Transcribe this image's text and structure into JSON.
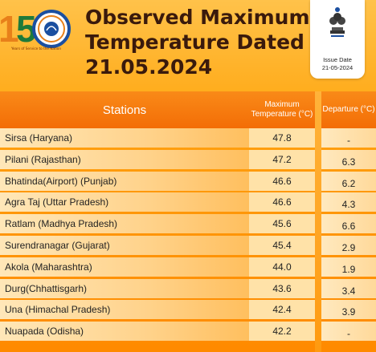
{
  "logo": {
    "number": "150",
    "tagline": "Years of Service to the Nation"
  },
  "title": {
    "line1": "Observed Maximum",
    "line2": "Temperature Dated",
    "line3": "21.05.2024"
  },
  "issue": {
    "label": "Issue Date",
    "date": "21-05-2024"
  },
  "table": {
    "headers": {
      "stations": "Stations",
      "temp": "Maximum Temperature (°C)",
      "departure": "Departure (°C)"
    },
    "rows": [
      {
        "station": "Sirsa (Haryana)",
        "temp": "47.8",
        "departure": "-"
      },
      {
        "station": "Pilani (Rajasthan)",
        "temp": "47.2",
        "departure": "6.3"
      },
      {
        "station": "Bhatinda(Airport) (Punjab)",
        "temp": "46.6",
        "departure": "6.2"
      },
      {
        "station": "Agra Taj (Uttar Pradesh)",
        "temp": "46.6",
        "departure": "4.3"
      },
      {
        "station": "Ratlam (Madhya Pradesh)",
        "temp": "45.6",
        "departure": "6.6"
      },
      {
        "station": "Surendranagar (Gujarat)",
        "temp": "45.4",
        "departure": "2.9"
      },
      {
        "station": "Akola (Maharashtra)",
        "temp": "44.0",
        "departure": "1.9"
      },
      {
        "station": "Durg(Chhattisgarh)",
        "temp": "43.6",
        "departure": "3.4"
      },
      {
        "station": "Una (Himachal Pradesh)",
        "temp": "42.4",
        "departure": "3.9"
      },
      {
        "station": "Nuapada (Odisha)",
        "temp": "42.2",
        "departure": "-"
      }
    ]
  },
  "colors": {
    "header_orange": "#f36d06",
    "title_text": "#3a1a0c",
    "row_light": "#ffe2a8"
  }
}
